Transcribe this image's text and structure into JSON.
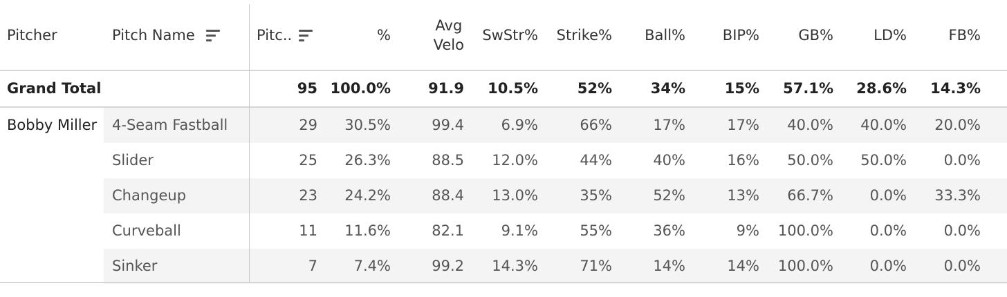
{
  "header": {
    "pitcher": "Pitcher",
    "pitch_name": "Pitch Name",
    "pitches": "Pitc..",
    "pct": "%",
    "avg_velo_line1": "Avg",
    "avg_velo_line2": "Velo",
    "swstr": "SwStr%",
    "strike": "Strike%",
    "ball": "Ball%",
    "bip": "BIP%",
    "gb": "GB%",
    "ld": "LD%",
    "fb": "FB%"
  },
  "total": {
    "label": "Grand Total",
    "pitches": "95",
    "pct": "100.0%",
    "avg_velo": "91.9",
    "swstr": "10.5%",
    "strike": "52%",
    "ball": "34%",
    "bip": "15%",
    "gb": "57.1%",
    "ld": "28.6%",
    "fb": "14.3%"
  },
  "pitcher_name": "Bobby Miller",
  "rows": [
    {
      "pitch_name": "4-Seam Fastball",
      "pitches": "29",
      "pct": "30.5%",
      "avg_velo": "99.4",
      "swstr": "6.9%",
      "strike": "66%",
      "ball": "17%",
      "bip": "17%",
      "gb": "40.0%",
      "ld": "40.0%",
      "fb": "20.0%"
    },
    {
      "pitch_name": "Slider",
      "pitches": "25",
      "pct": "26.3%",
      "avg_velo": "88.5",
      "swstr": "12.0%",
      "strike": "44%",
      "ball": "40%",
      "bip": "16%",
      "gb": "50.0%",
      "ld": "50.0%",
      "fb": "0.0%"
    },
    {
      "pitch_name": "Changeup",
      "pitches": "23",
      "pct": "24.2%",
      "avg_velo": "88.4",
      "swstr": "13.0%",
      "strike": "35%",
      "ball": "52%",
      "bip": "13%",
      "gb": "66.7%",
      "ld": "0.0%",
      "fb": "33.3%"
    },
    {
      "pitch_name": "Curveball",
      "pitches": "11",
      "pct": "11.6%",
      "avg_velo": "82.1",
      "swstr": "9.1%",
      "strike": "55%",
      "ball": "36%",
      "bip": "9%",
      "gb": "100.0%",
      "ld": "0.0%",
      "fb": "0.0%"
    },
    {
      "pitch_name": "Sinker",
      "pitches": "7",
      "pct": "7.4%",
      "avg_velo": "99.2",
      "swstr": "14.3%",
      "strike": "71%",
      "ball": "14%",
      "bip": "14%",
      "gb": "100.0%",
      "ld": "0.0%",
      "fb": "0.0%"
    }
  ],
  "icons": {
    "pitch_name_sort": "sort-descending-icon",
    "pitches_sort": "sort-descending-icon"
  }
}
